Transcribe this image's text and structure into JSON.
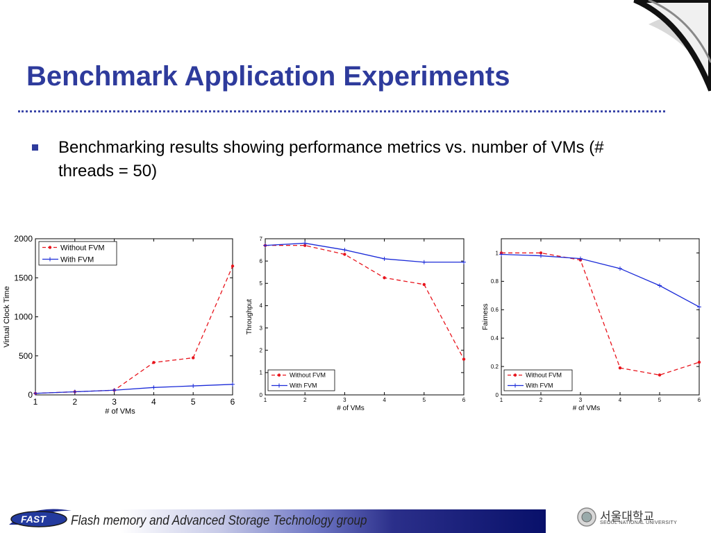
{
  "slide": {
    "title": "Benchmark Application Experiments",
    "bullet": "Benchmarking results showing performance metrics vs. number of VMs (# threads = 50)"
  },
  "footer": {
    "logo_text": "FAST",
    "group": "Flash memory and Advanced Storage Technology group",
    "university_kr": "서울대학교",
    "university_en": "SEOUL NATIONAL UNIVERSITY"
  },
  "colors": {
    "title": "#2e3b9c",
    "without_fvm": "#e8141c",
    "with_fvm": "#1a2ad8"
  },
  "chart_data": [
    {
      "type": "line",
      "xlabel": "# of VMs",
      "ylabel": "Virtual Clock Time",
      "xlim": [
        1,
        6
      ],
      "ylim": [
        0,
        2000
      ],
      "xticks": [
        "1",
        "2",
        "3",
        "4",
        "5",
        "6"
      ],
      "yticks": [
        "0",
        "500",
        "1000",
        "1500",
        "2000"
      ],
      "legend_position": "top-left",
      "x": [
        1,
        2,
        3,
        4,
        5,
        6
      ],
      "series": [
        {
          "name": "Without FVM",
          "values": [
            20,
            40,
            60,
            415,
            475,
            1650
          ]
        },
        {
          "name": "With FVM",
          "values": [
            20,
            40,
            60,
            95,
            115,
            135
          ]
        }
      ]
    },
    {
      "type": "line",
      "xlabel": "# of VMs",
      "ylabel": "Throughput",
      "xlim": [
        1,
        6
      ],
      "ylim": [
        0,
        7
      ],
      "xticks": [
        "1",
        "2",
        "3",
        "4",
        "5",
        "6"
      ],
      "yticks": [
        "0",
        "1",
        "2",
        "3",
        "4",
        "5",
        "6",
        "7"
      ],
      "legend_position": "bottom-left",
      "x": [
        1,
        2,
        3,
        4,
        5,
        6
      ],
      "series": [
        {
          "name": "Without FVM",
          "values": [
            6.7,
            6.7,
            6.3,
            5.25,
            4.95,
            1.6
          ]
        },
        {
          "name": "With FVM",
          "values": [
            6.7,
            6.8,
            6.5,
            6.1,
            5.95,
            5.95
          ]
        }
      ]
    },
    {
      "type": "line",
      "xlabel": "# of VMs",
      "ylabel": "Fairness",
      "xlim": [
        1,
        6
      ],
      "ylim": [
        0,
        1.1
      ],
      "xticks": [
        "1",
        "2",
        "3",
        "4",
        "5",
        "6"
      ],
      "yticks": [
        "0",
        "0.2",
        "0.4",
        "0.6",
        "0.8",
        "1"
      ],
      "legend_position": "bottom-left",
      "x": [
        1,
        2,
        3,
        4,
        5,
        6
      ],
      "series": [
        {
          "name": "Without FVM",
          "values": [
            1.0,
            1.0,
            0.95,
            0.19,
            0.14,
            0.23
          ]
        },
        {
          "name": "With FVM",
          "values": [
            0.99,
            0.98,
            0.96,
            0.89,
            0.77,
            0.62
          ]
        }
      ]
    }
  ]
}
